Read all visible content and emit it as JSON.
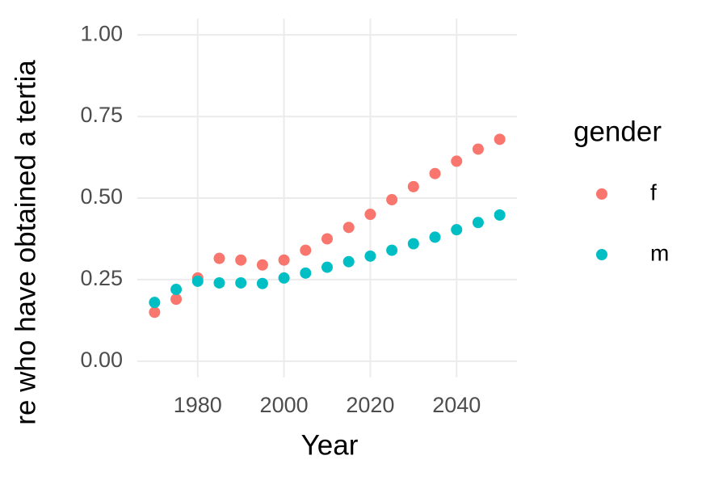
{
  "chart_data": {
    "type": "scatter",
    "x_label": "Year",
    "y_label": "re who have obtained a tertia",
    "legend_title": "gender",
    "x": [
      1970,
      1975,
      1980,
      1985,
      1990,
      1995,
      2000,
      2005,
      2010,
      2015,
      2020,
      2025,
      2030,
      2035,
      2040,
      2045,
      2050
    ],
    "series": [
      {
        "name": "f",
        "color": "#F8766D",
        "values": [
          0.15,
          0.19,
          0.255,
          0.315,
          0.31,
          0.295,
          0.31,
          0.34,
          0.375,
          0.41,
          0.45,
          0.495,
          0.535,
          0.575,
          0.613,
          0.65,
          0.68
        ]
      },
      {
        "name": "m",
        "color": "#00BFC4",
        "values": [
          0.18,
          0.22,
          0.245,
          0.24,
          0.24,
          0.238,
          0.255,
          0.27,
          0.288,
          0.305,
          0.322,
          0.34,
          0.36,
          0.38,
          0.403,
          0.425,
          0.448
        ]
      }
    ],
    "xlim": [
      1966,
      2054
    ],
    "ylim": [
      -0.05,
      1.05
    ],
    "xticks": [
      1980,
      2000,
      2020,
      2040
    ],
    "yticks": [
      {
        "value": 0,
        "label": "0.00"
      },
      {
        "value": 0.25,
        "label": "0.25"
      },
      {
        "value": 0.5,
        "label": "0.50"
      },
      {
        "value": 0.75,
        "label": "0.75"
      },
      {
        "value": 1,
        "label": "1.00"
      }
    ],
    "grid": true,
    "legend": "right"
  }
}
